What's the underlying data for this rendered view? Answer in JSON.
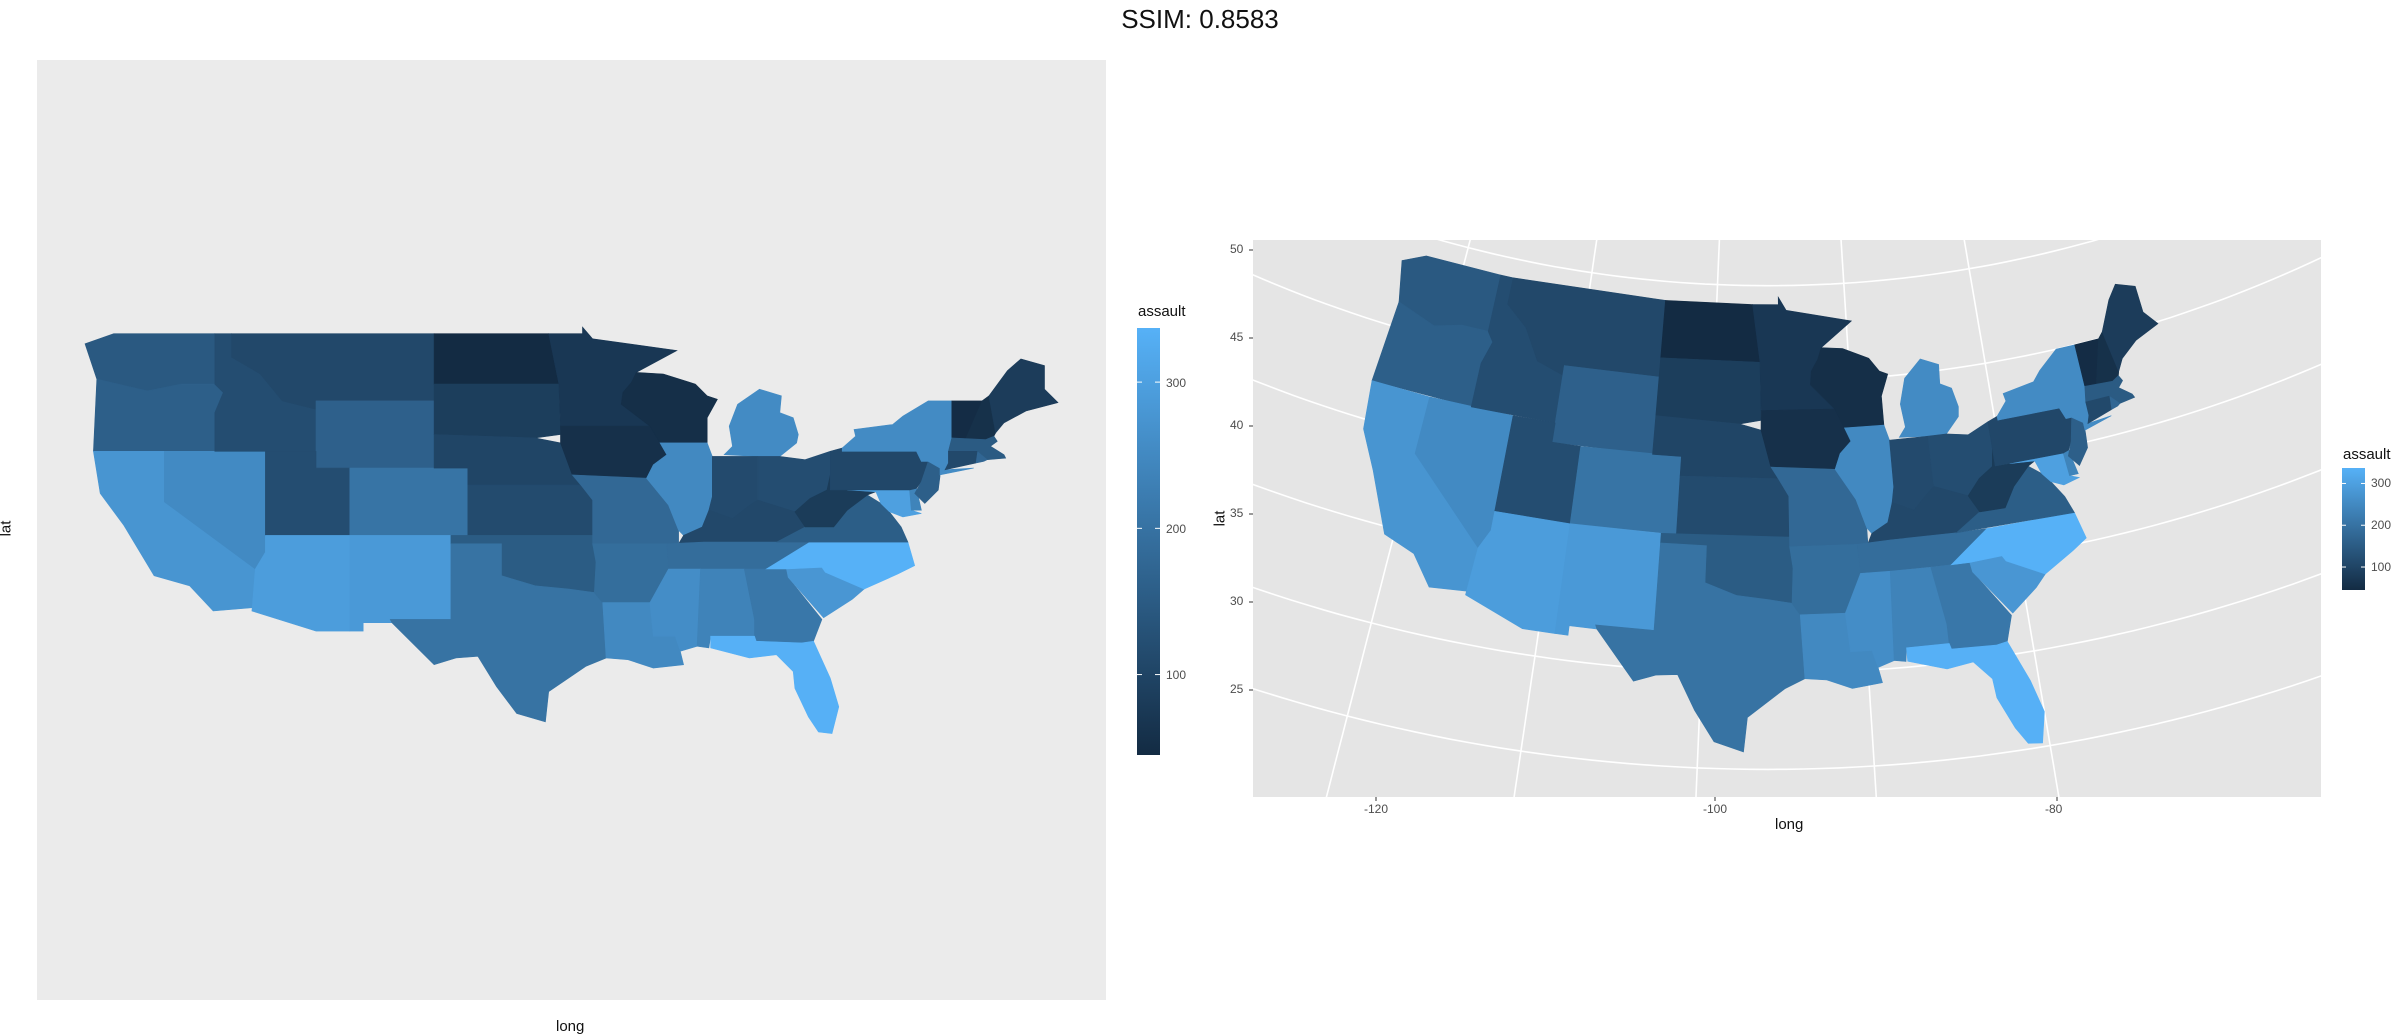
{
  "figure_title": "SSIM: 0.8583",
  "colors": {
    "low": "#132b43",
    "high": "#56b1f7",
    "panel_background_left": "#ebebeb",
    "panel_background_right": "#e5e5e5",
    "graticule": "#ffffff"
  },
  "chart_data": [
    {
      "type": "choropleth",
      "name_hint": "left",
      "projection": "none",
      "fill_variable": "assault",
      "xlabel": "long",
      "ylabel": "lat",
      "axis_ticks_shown": false,
      "grid": false,
      "legend": {
        "title": "assault",
        "placement": "right",
        "breaks": [
          "100",
          "200",
          "300"
        ],
        "range": [
          45,
          337
        ]
      }
    },
    {
      "type": "choropleth",
      "name_hint": "right",
      "projection": "albers (curved graticule)",
      "fill_variable": "assault",
      "xlabel": "long",
      "ylabel": "lat",
      "x_ticks": [
        "-120",
        "-100",
        "-80"
      ],
      "y_ticks": [
        "50",
        "45",
        "40",
        "35",
        "30",
        "25"
      ],
      "grid": true,
      "legend": {
        "title": "assault",
        "placement": "right",
        "breaks": [
          "300",
          "200",
          "100"
        ],
        "range": [
          45,
          337
        ]
      }
    }
  ],
  "states": [
    {
      "name": "Washington",
      "assault": 145
    },
    {
      "name": "Oregon",
      "assault": 159
    },
    {
      "name": "California",
      "assault": 276
    },
    {
      "name": "Nevada",
      "assault": 252
    },
    {
      "name": "Idaho",
      "assault": 120
    },
    {
      "name": "Montana",
      "assault": 109
    },
    {
      "name": "Wyoming",
      "assault": 161
    },
    {
      "name": "Utah",
      "assault": 120
    },
    {
      "name": "Arizona",
      "assault": 294
    },
    {
      "name": "Colorado",
      "assault": 204
    },
    {
      "name": "New Mexico",
      "assault": 285
    },
    {
      "name": "North Dakota",
      "assault": 45
    },
    {
      "name": "South Dakota",
      "assault": 86
    },
    {
      "name": "Nebraska",
      "assault": 102
    },
    {
      "name": "Kansas",
      "assault": 115
    },
    {
      "name": "Oklahoma",
      "assault": 151
    },
    {
      "name": "Texas",
      "assault": 201
    },
    {
      "name": "Minnesota",
      "assault": 72
    },
    {
      "name": "Iowa",
      "assault": 56
    },
    {
      "name": "Missouri",
      "assault": 178
    },
    {
      "name": "Arkansas",
      "assault": 190
    },
    {
      "name": "Louisiana",
      "assault": 249
    },
    {
      "name": "Wisconsin",
      "assault": 53
    },
    {
      "name": "Illinois",
      "assault": 249
    },
    {
      "name": "Michigan",
      "assault": 255
    },
    {
      "name": "Indiana",
      "assault": 113
    },
    {
      "name": "Ohio",
      "assault": 120
    },
    {
      "name": "Kentucky",
      "assault": 109
    },
    {
      "name": "Tennessee",
      "assault": 188
    },
    {
      "name": "Mississippi",
      "assault": 259
    },
    {
      "name": "Alabama",
      "assault": 236
    },
    {
      "name": "Georgia",
      "assault": 211
    },
    {
      "name": "Florida",
      "assault": 335
    },
    {
      "name": "South Carolina",
      "assault": 279
    },
    {
      "name": "North Carolina",
      "assault": 337
    },
    {
      "name": "Virginia",
      "assault": 156
    },
    {
      "name": "West Virginia",
      "assault": 81
    },
    {
      "name": "Pennsylvania",
      "assault": 106
    },
    {
      "name": "New York",
      "assault": 254
    },
    {
      "name": "Vermont",
      "assault": 48
    },
    {
      "name": "New Hampshire",
      "assault": 57
    },
    {
      "name": "Maine",
      "assault": 83
    },
    {
      "name": "Massachusetts",
      "assault": 149
    },
    {
      "name": "Connecticut",
      "assault": 110
    },
    {
      "name": "Rhode Island",
      "assault": 174
    },
    {
      "name": "New Jersey",
      "assault": 159
    },
    {
      "name": "Delaware",
      "assault": 238
    },
    {
      "name": "Maryland",
      "assault": 300
    }
  ]
}
